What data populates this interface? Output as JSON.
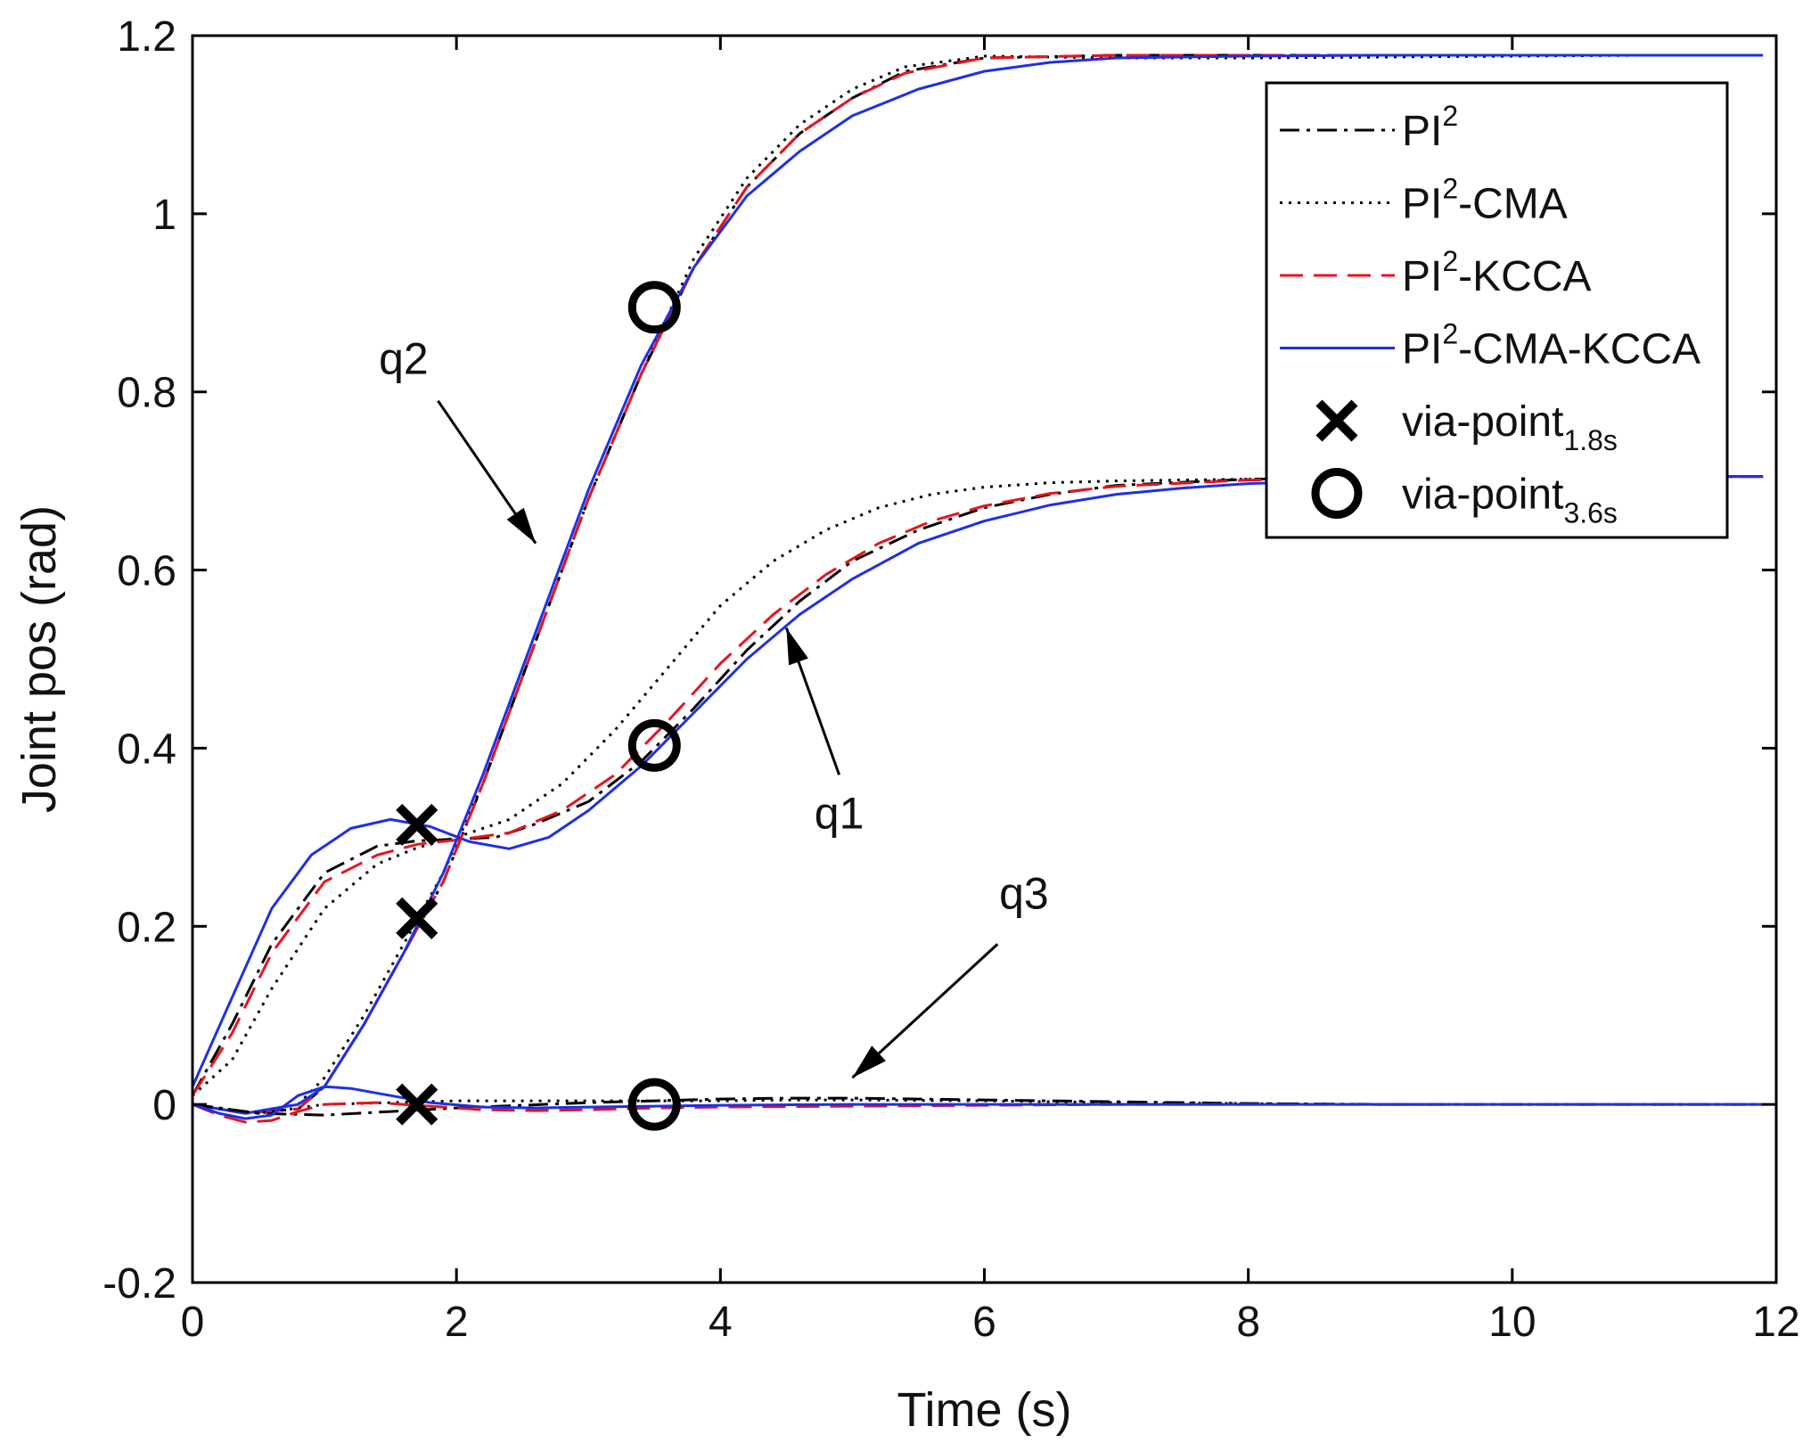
{
  "chart_data": {
    "type": "line",
    "title": "",
    "xlabel": "Time (s)",
    "ylabel": "Joint pos (rad)",
    "xlim": [
      0,
      12
    ],
    "ylim": [
      -0.2,
      1.2
    ],
    "xticks": [
      "0",
      "2",
      "4",
      "6",
      "8",
      "10",
      "12"
    ],
    "yticks": [
      "-0.2",
      "0",
      "0.2",
      "0.4",
      "0.6",
      "0.8",
      "1",
      "1.2"
    ],
    "grid": false,
    "legend_position": "top-right",
    "legend": [
      {
        "base": "PI",
        "sup": "2",
        "suffix": "",
        "sub": "",
        "color": "#000000",
        "style": "dashdot"
      },
      {
        "base": "PI",
        "sup": "2",
        "suffix": "-CMA",
        "sub": "",
        "color": "#000000",
        "style": "dotted"
      },
      {
        "base": "PI",
        "sup": "2",
        "suffix": "-KCCA",
        "sub": "",
        "color": "#e8141e",
        "style": "dashed"
      },
      {
        "base": "PI",
        "sup": "2",
        "suffix": "-CMA-KCCA",
        "sub": "",
        "color": "#1f2fe6",
        "style": "solid"
      },
      {
        "base": "via-point",
        "sup": "",
        "suffix": "",
        "sub": "1.8s",
        "color": "#000000",
        "style": "marker-x"
      },
      {
        "base": "via-point",
        "sup": "",
        "suffix": "",
        "sub": "3.6s",
        "color": "#000000",
        "style": "marker-o"
      }
    ],
    "annotations": [
      {
        "text": "q2",
        "x": 1.6,
        "y": 0.82,
        "arrow_from": [
          1.86,
          0.79
        ],
        "arrow_to": [
          2.6,
          0.63
        ]
      },
      {
        "text": "q1",
        "x": 4.9,
        "y": 0.31,
        "arrow_from": [
          4.9,
          0.37
        ],
        "arrow_to": [
          4.5,
          0.535
        ]
      },
      {
        "text": "q3",
        "x": 6.3,
        "y": 0.22,
        "arrow_from": [
          6.1,
          0.18
        ],
        "arrow_to": [
          5.0,
          0.03
        ]
      }
    ],
    "via_points": {
      "t1_8s": [
        {
          "x": 1.7,
          "y": 0.314
        },
        {
          "x": 1.7,
          "y": 0.209
        },
        {
          "x": 1.7,
          "y": 0.0
        }
      ],
      "t3_6s": [
        {
          "x": 3.5,
          "y": 0.895
        },
        {
          "x": 3.5,
          "y": 0.403
        },
        {
          "x": 3.5,
          "y": 0.0
        }
      ]
    },
    "series": [
      {
        "name": "q1 PI2",
        "legend_index": 0,
        "points": [
          [
            0,
            0.01
          ],
          [
            0.3,
            0.09
          ],
          [
            0.6,
            0.18
          ],
          [
            1.0,
            0.26
          ],
          [
            1.4,
            0.29
          ],
          [
            1.7,
            0.296
          ],
          [
            2.0,
            0.298
          ],
          [
            2.3,
            0.3
          ],
          [
            2.6,
            0.315
          ],
          [
            3.0,
            0.34
          ],
          [
            3.4,
            0.385
          ],
          [
            3.8,
            0.445
          ],
          [
            4.2,
            0.51
          ],
          [
            4.6,
            0.565
          ],
          [
            5.0,
            0.61
          ],
          [
            5.5,
            0.645
          ],
          [
            6.0,
            0.67
          ],
          [
            6.5,
            0.685
          ],
          [
            7.0,
            0.695
          ],
          [
            8.0,
            0.702
          ],
          [
            9.0,
            0.703
          ],
          [
            10.0,
            0.704
          ],
          [
            11.0,
            0.705
          ],
          [
            11.9,
            0.705
          ]
        ]
      },
      {
        "name": "q1 PI2-CMA",
        "legend_index": 1,
        "points": [
          [
            0,
            0.01
          ],
          [
            0.3,
            0.05
          ],
          [
            0.6,
            0.13
          ],
          [
            1.0,
            0.22
          ],
          [
            1.4,
            0.27
          ],
          [
            1.7,
            0.288
          ],
          [
            2.0,
            0.3
          ],
          [
            2.4,
            0.32
          ],
          [
            2.8,
            0.36
          ],
          [
            3.2,
            0.42
          ],
          [
            3.6,
            0.49
          ],
          [
            4.0,
            0.56
          ],
          [
            4.4,
            0.61
          ],
          [
            4.8,
            0.645
          ],
          [
            5.2,
            0.67
          ],
          [
            5.6,
            0.685
          ],
          [
            6.0,
            0.693
          ],
          [
            6.5,
            0.698
          ],
          [
            7.0,
            0.7
          ],
          [
            8.0,
            0.702
          ],
          [
            9.0,
            0.703
          ],
          [
            10.0,
            0.704
          ],
          [
            11.0,
            0.705
          ],
          [
            11.9,
            0.705
          ]
        ]
      },
      {
        "name": "q1 PI2-KCCA",
        "legend_index": 2,
        "points": [
          [
            0,
            0.01
          ],
          [
            0.3,
            0.08
          ],
          [
            0.6,
            0.17
          ],
          [
            1.0,
            0.25
          ],
          [
            1.4,
            0.28
          ],
          [
            1.7,
            0.292
          ],
          [
            2.0,
            0.297
          ],
          [
            2.4,
            0.305
          ],
          [
            2.8,
            0.33
          ],
          [
            3.2,
            0.37
          ],
          [
            3.6,
            0.43
          ],
          [
            4.0,
            0.495
          ],
          [
            4.4,
            0.55
          ],
          [
            4.8,
            0.595
          ],
          [
            5.2,
            0.63
          ],
          [
            5.6,
            0.655
          ],
          [
            6.0,
            0.672
          ],
          [
            6.5,
            0.686
          ],
          [
            7.0,
            0.694
          ],
          [
            8.0,
            0.701
          ],
          [
            9.0,
            0.703
          ],
          [
            10.0,
            0.704
          ],
          [
            11.0,
            0.705
          ],
          [
            11.9,
            0.705
          ]
        ]
      },
      {
        "name": "q1 PI2-CMA-KCCA",
        "legend_index": 3,
        "points": [
          [
            0,
            0.02
          ],
          [
            0.3,
            0.12
          ],
          [
            0.6,
            0.22
          ],
          [
            0.9,
            0.28
          ],
          [
            1.2,
            0.31
          ],
          [
            1.5,
            0.32
          ],
          [
            1.8,
            0.312
          ],
          [
            2.1,
            0.295
          ],
          [
            2.4,
            0.287
          ],
          [
            2.7,
            0.3
          ],
          [
            3.0,
            0.33
          ],
          [
            3.4,
            0.38
          ],
          [
            3.8,
            0.44
          ],
          [
            4.2,
            0.5
          ],
          [
            4.6,
            0.55
          ],
          [
            5.0,
            0.59
          ],
          [
            5.5,
            0.63
          ],
          [
            6.0,
            0.655
          ],
          [
            6.5,
            0.673
          ],
          [
            7.0,
            0.685
          ],
          [
            7.5,
            0.692
          ],
          [
            8.0,
            0.697
          ],
          [
            9.0,
            0.702
          ],
          [
            10.0,
            0.704
          ],
          [
            11.0,
            0.705
          ],
          [
            11.9,
            0.705
          ]
        ]
      },
      {
        "name": "q2 PI2",
        "legend_index": 0,
        "points": [
          [
            0,
            0.0
          ],
          [
            0.4,
            -0.01
          ],
          [
            0.8,
            -0.005
          ],
          [
            1.0,
            0.02
          ],
          [
            1.3,
            0.09
          ],
          [
            1.6,
            0.17
          ],
          [
            1.9,
            0.25
          ],
          [
            2.2,
            0.36
          ],
          [
            2.6,
            0.52
          ],
          [
            3.0,
            0.68
          ],
          [
            3.4,
            0.82
          ],
          [
            3.8,
            0.94
          ],
          [
            4.2,
            1.03
          ],
          [
            4.6,
            1.09
          ],
          [
            5.0,
            1.13
          ],
          [
            5.4,
            1.16
          ],
          [
            6.0,
            1.175
          ],
          [
            7.0,
            1.178
          ],
          [
            8.0,
            1.178
          ],
          [
            9.0,
            1.178
          ],
          [
            10.0,
            1.178
          ],
          [
            11.0,
            1.178
          ],
          [
            11.9,
            1.178
          ]
        ]
      },
      {
        "name": "q2 PI2-CMA",
        "legend_index": 1,
        "points": [
          [
            0,
            0.0
          ],
          [
            0.4,
            -0.01
          ],
          [
            0.8,
            0.0
          ],
          [
            1.0,
            0.03
          ],
          [
            1.3,
            0.1
          ],
          [
            1.6,
            0.18
          ],
          [
            1.9,
            0.26
          ],
          [
            2.2,
            0.36
          ],
          [
            2.6,
            0.52
          ],
          [
            3.0,
            0.68
          ],
          [
            3.4,
            0.82
          ],
          [
            3.8,
            0.95
          ],
          [
            4.2,
            1.04
          ],
          [
            4.6,
            1.1
          ],
          [
            5.0,
            1.14
          ],
          [
            5.4,
            1.165
          ],
          [
            6.0,
            1.177
          ],
          [
            7.0,
            1.175
          ],
          [
            8.0,
            1.175
          ],
          [
            9.0,
            1.176
          ],
          [
            10.0,
            1.177
          ],
          [
            11.0,
            1.178
          ],
          [
            11.9,
            1.178
          ]
        ]
      },
      {
        "name": "q2 PI2-KCCA",
        "legend_index": 2,
        "points": [
          [
            0,
            0.0
          ],
          [
            0.4,
            -0.01
          ],
          [
            0.8,
            -0.005
          ],
          [
            1.0,
            0.02
          ],
          [
            1.3,
            0.09
          ],
          [
            1.6,
            0.17
          ],
          [
            1.9,
            0.25
          ],
          [
            2.2,
            0.36
          ],
          [
            2.6,
            0.52
          ],
          [
            3.0,
            0.68
          ],
          [
            3.4,
            0.82
          ],
          [
            3.8,
            0.94
          ],
          [
            4.2,
            1.03
          ],
          [
            4.6,
            1.09
          ],
          [
            5.0,
            1.13
          ],
          [
            5.4,
            1.158
          ],
          [
            6.0,
            1.175
          ],
          [
            7.0,
            1.178
          ],
          [
            8.0,
            1.178
          ],
          [
            9.0,
            1.178
          ],
          [
            10.0,
            1.178
          ],
          [
            11.0,
            1.178
          ],
          [
            11.9,
            1.178
          ]
        ]
      },
      {
        "name": "q2 PI2-CMA-KCCA",
        "legend_index": 3,
        "points": [
          [
            0,
            0.0
          ],
          [
            0.4,
            -0.01
          ],
          [
            0.8,
            0.0
          ],
          [
            1.0,
            0.02
          ],
          [
            1.3,
            0.09
          ],
          [
            1.6,
            0.17
          ],
          [
            1.9,
            0.26
          ],
          [
            2.2,
            0.37
          ],
          [
            2.6,
            0.53
          ],
          [
            3.0,
            0.69
          ],
          [
            3.4,
            0.83
          ],
          [
            3.8,
            0.94
          ],
          [
            4.2,
            1.02
          ],
          [
            4.6,
            1.07
          ],
          [
            5.0,
            1.11
          ],
          [
            5.5,
            1.14
          ],
          [
            6.0,
            1.16
          ],
          [
            6.5,
            1.17
          ],
          [
            7.0,
            1.175
          ],
          [
            8.0,
            1.177
          ],
          [
            9.0,
            1.178
          ],
          [
            10.0,
            1.178
          ],
          [
            11.0,
            1.178
          ],
          [
            11.9,
            1.178
          ]
        ]
      },
      {
        "name": "q3 PI2",
        "legend_index": 0,
        "points": [
          [
            0,
            0.0
          ],
          [
            0.5,
            -0.01
          ],
          [
            1.0,
            -0.012
          ],
          [
            1.5,
            -0.008
          ],
          [
            2.0,
            -0.004
          ],
          [
            2.5,
            -0.001
          ],
          [
            3.0,
            0.002
          ],
          [
            3.5,
            0.004
          ],
          [
            4.0,
            0.006
          ],
          [
            4.5,
            0.007
          ],
          [
            5.0,
            0.007
          ],
          [
            5.5,
            0.006
          ],
          [
            6.0,
            0.005
          ],
          [
            7.0,
            0.003
          ],
          [
            8.0,
            0.001
          ],
          [
            9.0,
            0.0
          ],
          [
            10.0,
            0.0
          ],
          [
            11.9,
            0.0
          ]
        ]
      },
      {
        "name": "q3 PI2-CMA",
        "legend_index": 1,
        "points": [
          [
            0,
            0.0
          ],
          [
            0.5,
            -0.01
          ],
          [
            1.0,
            0.0
          ],
          [
            1.5,
            0.002
          ],
          [
            2.0,
            0.004
          ],
          [
            2.5,
            0.004
          ],
          [
            3.0,
            0.004
          ],
          [
            3.5,
            0.004
          ],
          [
            4.0,
            0.004
          ],
          [
            4.5,
            0.005
          ],
          [
            5.0,
            0.005
          ],
          [
            6.0,
            0.004
          ],
          [
            7.0,
            0.002
          ],
          [
            8.0,
            0.001
          ],
          [
            9.0,
            0.0
          ],
          [
            10.0,
            0.0
          ],
          [
            11.9,
            0.0
          ]
        ]
      },
      {
        "name": "q3 PI2-KCCA",
        "legend_index": 2,
        "points": [
          [
            0,
            0.0
          ],
          [
            0.2,
            -0.012
          ],
          [
            0.4,
            -0.02
          ],
          [
            0.6,
            -0.018
          ],
          [
            0.8,
            -0.008
          ],
          [
            1.0,
            0.0
          ],
          [
            1.4,
            0.002
          ],
          [
            1.8,
            -0.002
          ],
          [
            2.2,
            -0.006
          ],
          [
            2.6,
            -0.007
          ],
          [
            3.0,
            -0.006
          ],
          [
            3.5,
            -0.004
          ],
          [
            4.0,
            -0.003
          ],
          [
            5.0,
            -0.002
          ],
          [
            6.0,
            -0.001
          ],
          [
            7.0,
            0.0
          ],
          [
            8.0,
            0.0
          ],
          [
            9.4,
            0.0
          ]
        ]
      },
      {
        "name": "q3 PI2-CMA-KCCA",
        "legend_index": 3,
        "points": [
          [
            0,
            0.0
          ],
          [
            0.2,
            -0.01
          ],
          [
            0.4,
            -0.016
          ],
          [
            0.6,
            -0.012
          ],
          [
            0.8,
            0.01
          ],
          [
            1.0,
            0.02
          ],
          [
            1.2,
            0.018
          ],
          [
            1.5,
            0.01
          ],
          [
            1.8,
            0.002
          ],
          [
            2.2,
            -0.003
          ],
          [
            2.6,
            -0.004
          ],
          [
            3.0,
            -0.003
          ],
          [
            3.5,
            -0.002
          ],
          [
            4.0,
            -0.001
          ],
          [
            5.0,
            0.0
          ],
          [
            6.0,
            0.0
          ],
          [
            8.0,
            0.0
          ],
          [
            10.0,
            0.0
          ],
          [
            11.9,
            0.0
          ]
        ]
      },
      {
        "name": "q1 PI2-CMA-KCCA tail",
        "legend_index": 3,
        "points": [
          [
            11.0,
            0.705
          ],
          [
            11.9,
            0.705
          ]
        ]
      }
    ]
  }
}
